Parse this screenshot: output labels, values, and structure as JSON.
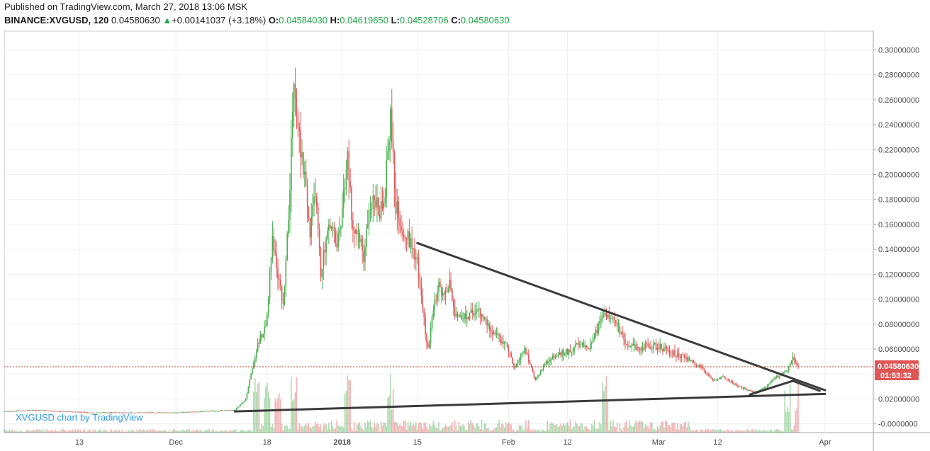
{
  "header": {
    "published": "Published on TradingView.com, March 27, 2018 13:06 MSK",
    "symbol": "BINANCE:XVGUSD, 120",
    "last": "0.04580630",
    "change_arrow": "▲",
    "change": "+0.00141037 (+3.18%)",
    "open_label": "O:",
    "open": "0.04584030",
    "high_label": "H:",
    "high": "0.04619650",
    "low_label": "L:",
    "low": "0.04528706",
    "close_label": "C:",
    "close": "0.04580630"
  },
  "watermark": "XVGUSD chart by TradingView",
  "colors": {
    "up": "#4caf50",
    "down": "#e05a5a",
    "trendline": "#3a3a3a",
    "price_line": "#c0392b",
    "badge": "#e05555",
    "watermark": "#2e9be6",
    "grid": "#eef0f3"
  },
  "price_badge": {
    "value": "0.04580630",
    "countdown": "01:53:32"
  },
  "chart_data": {
    "type": "candlestick",
    "symbol": "BINANCE:XVGUSD",
    "interval": "120",
    "y_axis": {
      "ticks": [
        0.0,
        0.02,
        0.04,
        0.06,
        0.08,
        0.1,
        0.12,
        0.14,
        0.16,
        0.18,
        0.2,
        0.22,
        0.24,
        0.26,
        0.28,
        0.3
      ],
      "tick_labels": [
        "-0.0000000",
        "0.02000000",
        "0.04000000",
        "0.06000000",
        "0.08000000",
        "0.10000000",
        "0.12000000",
        "0.14000000",
        "0.16000000",
        "0.18000000",
        "0.20000000",
        "0.22000000",
        "0.24000000",
        "0.26000000",
        "0.28000000",
        "0.30000000"
      ],
      "range": [
        -0.007,
        0.315
      ],
      "position": "right"
    },
    "x_axis": {
      "tick_labels": [
        "13",
        "Dec",
        "18",
        "2018",
        "15",
        "Feb",
        "12",
        "Mar",
        "12",
        "Apr"
      ],
      "tick_dates": [
        "2017-11-13",
        "2017-12-01",
        "2017-12-18",
        "2018-01-01",
        "2018-01-15",
        "2018-02-01",
        "2018-02-12",
        "2018-03-01",
        "2018-03-12",
        "2018-04-01"
      ],
      "range": [
        "2017-10-30",
        "2018-04-10"
      ]
    },
    "grid": true,
    "price_path": [
      [
        "2017-10-30",
        0.01
      ],
      [
        "2017-11-05",
        0.011
      ],
      [
        "2017-11-15",
        0.009
      ],
      [
        "2017-11-25",
        0.009
      ],
      [
        "2017-12-01",
        0.009
      ],
      [
        "2017-12-06",
        0.01
      ],
      [
        "2017-12-12",
        0.011
      ],
      [
        "2017-12-14",
        0.02
      ],
      [
        "2017-12-16",
        0.06
      ],
      [
        "2017-12-18",
        0.085
      ],
      [
        "2017-12-19",
        0.15
      ],
      [
        "2017-12-20",
        0.12
      ],
      [
        "2017-12-21",
        0.095
      ],
      [
        "2017-12-22",
        0.17
      ],
      [
        "2017-12-23",
        0.27
      ],
      [
        "2017-12-24",
        0.23
      ],
      [
        "2017-12-25",
        0.2
      ],
      [
        "2017-12-26",
        0.15
      ],
      [
        "2017-12-27",
        0.19
      ],
      [
        "2017-12-28",
        0.12
      ],
      [
        "2017-12-29",
        0.15
      ],
      [
        "2017-12-30",
        0.16
      ],
      [
        "2017-12-31",
        0.14
      ],
      [
        "2018-01-01",
        0.17
      ],
      [
        "2018-01-02",
        0.22
      ],
      [
        "2018-01-03",
        0.15
      ],
      [
        "2018-01-04",
        0.16
      ],
      [
        "2018-01-05",
        0.13
      ],
      [
        "2018-01-06",
        0.175
      ],
      [
        "2018-01-07",
        0.18
      ],
      [
        "2018-01-08",
        0.17
      ],
      [
        "2018-01-09",
        0.19
      ],
      [
        "2018-01-10",
        0.25
      ],
      [
        "2018-01-11",
        0.175
      ],
      [
        "2018-01-12",
        0.16
      ],
      [
        "2018-01-13",
        0.15
      ],
      [
        "2018-01-14",
        0.145
      ],
      [
        "2018-01-15",
        0.13
      ],
      [
        "2018-01-16",
        0.09
      ],
      [
        "2018-01-17",
        0.06
      ],
      [
        "2018-01-18",
        0.09
      ],
      [
        "2018-01-19",
        0.11
      ],
      [
        "2018-01-20",
        0.1
      ],
      [
        "2018-01-21",
        0.115
      ],
      [
        "2018-01-22",
        0.09
      ],
      [
        "2018-01-24",
        0.085
      ],
      [
        "2018-01-26",
        0.092
      ],
      [
        "2018-01-28",
        0.08
      ],
      [
        "2018-01-30",
        0.07
      ],
      [
        "2018-02-01",
        0.06
      ],
      [
        "2018-02-02",
        0.045
      ],
      [
        "2018-02-04",
        0.06
      ],
      [
        "2018-02-06",
        0.035
      ],
      [
        "2018-02-08",
        0.05
      ],
      [
        "2018-02-10",
        0.055
      ],
      [
        "2018-02-12",
        0.058
      ],
      [
        "2018-02-14",
        0.063
      ],
      [
        "2018-02-16",
        0.062
      ],
      [
        "2018-02-18",
        0.08
      ],
      [
        "2018-02-19",
        0.09
      ],
      [
        "2018-02-21",
        0.08
      ],
      [
        "2018-02-23",
        0.065
      ],
      [
        "2018-02-25",
        0.06
      ],
      [
        "2018-02-27",
        0.063
      ],
      [
        "2018-03-01",
        0.062
      ],
      [
        "2018-03-03",
        0.058
      ],
      [
        "2018-03-05",
        0.055
      ],
      [
        "2018-03-07",
        0.05
      ],
      [
        "2018-03-09",
        0.045
      ],
      [
        "2018-03-11",
        0.035
      ],
      [
        "2018-03-13",
        0.038
      ],
      [
        "2018-03-15",
        0.032
      ],
      [
        "2018-03-17",
        0.028
      ],
      [
        "2018-03-19",
        0.025
      ],
      [
        "2018-03-21",
        0.03
      ],
      [
        "2018-03-23",
        0.038
      ],
      [
        "2018-03-25",
        0.043
      ],
      [
        "2018-03-26",
        0.052
      ],
      [
        "2018-03-27",
        0.0458
      ]
    ],
    "volume_spikes": [
      "2017-12-16",
      "2017-12-18",
      "2017-12-20",
      "2017-12-23",
      "2018-01-02",
      "2018-01-10",
      "2018-02-19",
      "2018-03-25",
      "2018-03-27"
    ],
    "current_price": 0.0458063,
    "trendlines": [
      {
        "name": "descending-resistance",
        "from": [
          "2018-01-15",
          0.145
        ],
        "to": [
          "2018-04-01",
          0.027
        ]
      },
      {
        "name": "ascending-support",
        "from": [
          "2017-12-12",
          0.01
        ],
        "to": [
          "2018-04-01",
          0.024
        ]
      },
      {
        "name": "triangle-support",
        "from": [
          "2018-03-18",
          0.0235
        ],
        "to": [
          "2018-03-26",
          0.0345
        ]
      },
      {
        "name": "triangle-edge",
        "from": [
          "2018-03-26",
          0.0345
        ],
        "to": [
          "2018-03-31",
          0.0265
        ]
      }
    ]
  }
}
